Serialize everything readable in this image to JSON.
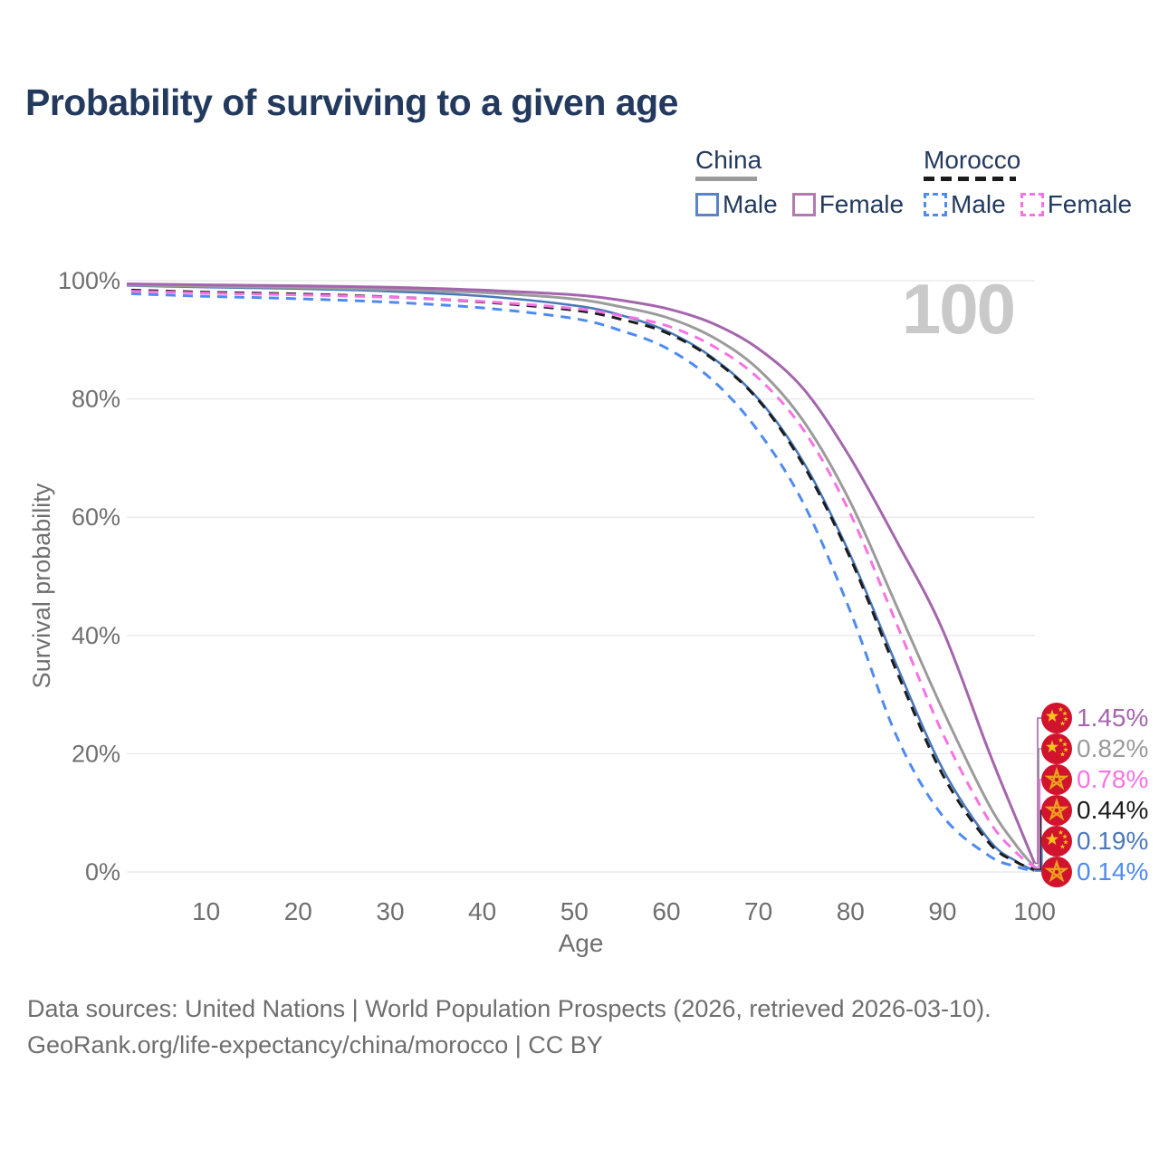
{
  "title": "Probability of surviving to a given age",
  "watermark_age": "100",
  "legend": {
    "china": {
      "label": "China",
      "male": "Male",
      "female": "Female"
    },
    "morocco": {
      "label": "Morocco",
      "male": "Male",
      "female": "Female"
    }
  },
  "colors": {
    "title_text": "#233a5e",
    "axis_text": "#6f6f6f",
    "gridline": "#e8e8e8",
    "watermark": "#c9c9c9",
    "china_male": "#4a78b9",
    "china_female": "#a565ad",
    "china_total": "#9b9b9b",
    "morocco_male": "#4e8bf0",
    "morocco_female": "#f872e4",
    "morocco_total": "#1b1b1b",
    "legend_china_male_box": "#5b84c4",
    "legend_china_female_box": "#b27ab1",
    "flag_red": "#d2132e",
    "flag_gold": "#fcc21b",
    "flag_gold_outline": "#eba31c"
  },
  "chart_data": {
    "type": "line",
    "title": "Probability of surviving to a given age",
    "xlabel": "Age",
    "ylabel": "Survival probability",
    "xlim": [
      0,
      100
    ],
    "ylim": [
      0,
      100
    ],
    "grid": "horizontal",
    "x_ticks": [
      {
        "value": 10,
        "label": "10"
      },
      {
        "value": 20,
        "label": "20"
      },
      {
        "value": 30,
        "label": "30"
      },
      {
        "value": 40,
        "label": "40"
      },
      {
        "value": 50,
        "label": "50"
      },
      {
        "value": 60,
        "label": "60"
      },
      {
        "value": 70,
        "label": "70"
      },
      {
        "value": 80,
        "label": "80"
      },
      {
        "value": 90,
        "label": "90"
      },
      {
        "value": 100,
        "label": "100"
      }
    ],
    "y_ticks": [
      {
        "value": 0,
        "label": "0%"
      },
      {
        "value": 20,
        "label": "20%"
      },
      {
        "value": 40,
        "label": "40%"
      },
      {
        "value": 60,
        "label": "60%"
      },
      {
        "value": 80,
        "label": "80%"
      },
      {
        "value": 100,
        "label": "100%"
      }
    ],
    "series": [
      {
        "id": "china-male",
        "name": "China Male",
        "color": "#4a78b9",
        "dash": false,
        "width": 2.6,
        "points": [
          [
            0,
            99.2
          ],
          [
            10,
            98.9
          ],
          [
            20,
            98.65
          ],
          [
            30,
            98.2
          ],
          [
            40,
            97.4
          ],
          [
            50,
            95.8
          ],
          [
            55,
            94.2
          ],
          [
            60,
            91.5
          ],
          [
            65,
            87
          ],
          [
            70,
            80
          ],
          [
            75,
            69
          ],
          [
            80,
            53.5
          ],
          [
            85,
            35
          ],
          [
            90,
            17.5
          ],
          [
            95,
            5.5
          ],
          [
            98,
            1.8
          ],
          [
            100,
            0.19
          ]
        ]
      },
      {
        "id": "china-total",
        "name": "China",
        "color": "#9b9b9b",
        "dash": false,
        "width": 3,
        "points": [
          [
            0,
            99.3
          ],
          [
            10,
            99.05
          ],
          [
            20,
            98.85
          ],
          [
            30,
            98.5
          ],
          [
            40,
            98.0
          ],
          [
            50,
            96.9
          ],
          [
            55,
            95.6
          ],
          [
            60,
            93.8
          ],
          [
            65,
            90.5
          ],
          [
            70,
            85
          ],
          [
            75,
            76
          ],
          [
            80,
            62.5
          ],
          [
            85,
            45
          ],
          [
            90,
            27.5
          ],
          [
            95,
            11.5
          ],
          [
            98,
            4.5
          ],
          [
            100,
            0.82
          ]
        ]
      },
      {
        "id": "morocco-male",
        "name": "Morocco Male",
        "color": "#4e8bf0",
        "dash": true,
        "width": 3,
        "points": [
          [
            0,
            97.9
          ],
          [
            10,
            97.35
          ],
          [
            20,
            96.95
          ],
          [
            30,
            96.35
          ],
          [
            40,
            95.4
          ],
          [
            50,
            93.6
          ],
          [
            55,
            91.6
          ],
          [
            60,
            88.6
          ],
          [
            65,
            83.2
          ],
          [
            70,
            74.5
          ],
          [
            75,
            62
          ],
          [
            80,
            44
          ],
          [
            85,
            23
          ],
          [
            90,
            9.5
          ],
          [
            95,
            2.8
          ],
          [
            98,
            0.9
          ],
          [
            100,
            0.14
          ]
        ]
      },
      {
        "id": "morocco-total",
        "name": "Morocco",
        "color": "#1b1b1b",
        "dash": true,
        "width": 3,
        "points": [
          [
            0,
            98.5
          ],
          [
            10,
            98.05
          ],
          [
            20,
            97.75
          ],
          [
            30,
            97.25
          ],
          [
            40,
            96.4
          ],
          [
            50,
            95.0
          ],
          [
            55,
            93.5
          ],
          [
            60,
            91.2
          ],
          [
            65,
            86.8
          ],
          [
            70,
            79.8
          ],
          [
            75,
            68.5
          ],
          [
            80,
            53
          ],
          [
            85,
            34
          ],
          [
            90,
            16.5
          ],
          [
            95,
            5.0
          ],
          [
            98,
            1.7
          ],
          [
            100,
            0.44
          ]
        ]
      },
      {
        "id": "morocco-female",
        "name": "Morocco Female",
        "color": "#f872e4",
        "dash": true,
        "width": 3,
        "points": [
          [
            0,
            98.3
          ],
          [
            10,
            97.9
          ],
          [
            20,
            97.6
          ],
          [
            30,
            97.2
          ],
          [
            40,
            96.5
          ],
          [
            50,
            95.3
          ],
          [
            55,
            94.1
          ],
          [
            60,
            92.4
          ],
          [
            65,
            89
          ],
          [
            70,
            83.5
          ],
          [
            75,
            74.5
          ],
          [
            80,
            60.5
          ],
          [
            85,
            42
          ],
          [
            90,
            23.5
          ],
          [
            95,
            8.8
          ],
          [
            98,
            3.3
          ],
          [
            100,
            0.78
          ]
        ]
      },
      {
        "id": "china-female",
        "name": "China Female",
        "color": "#a565ad",
        "dash": false,
        "width": 3,
        "points": [
          [
            0,
            99.5
          ],
          [
            10,
            99.3
          ],
          [
            20,
            99.15
          ],
          [
            30,
            98.9
          ],
          [
            40,
            98.4
          ],
          [
            50,
            97.6
          ],
          [
            55,
            96.7
          ],
          [
            60,
            95.3
          ],
          [
            65,
            92.8
          ],
          [
            70,
            88.5
          ],
          [
            75,
            81.5
          ],
          [
            80,
            70
          ],
          [
            85,
            56
          ],
          [
            90,
            41
          ],
          [
            95,
            20.5
          ],
          [
            98,
            9
          ],
          [
            100,
            1.45
          ]
        ]
      }
    ],
    "end_labels": [
      {
        "value": "1.45%",
        "pct": 1.45,
        "flag": "china",
        "series": "china-female",
        "color": "#a565ad"
      },
      {
        "value": "0.82%",
        "pct": 0.82,
        "flag": "china",
        "series": "china-total",
        "color": "#9b9b9b"
      },
      {
        "value": "0.78%",
        "pct": 0.78,
        "flag": "morocco",
        "series": "morocco-female",
        "color": "#f872e4"
      },
      {
        "value": "0.44%",
        "pct": 0.44,
        "flag": "morocco",
        "series": "morocco-total",
        "color": "#1b1b1b"
      },
      {
        "value": "0.19%",
        "pct": 0.19,
        "flag": "china",
        "series": "china-male",
        "color": "#4a78b9"
      },
      {
        "value": "0.14%",
        "pct": 0.14,
        "flag": "morocco",
        "series": "morocco-male",
        "color": "#4e8bf0"
      }
    ]
  },
  "footer": {
    "line1": "Data sources: United Nations | World Population Prospects (2026, retrieved 2026-03-10).",
    "line2": "GeoRank.org/life-expectancy/china/morocco | CC BY"
  }
}
